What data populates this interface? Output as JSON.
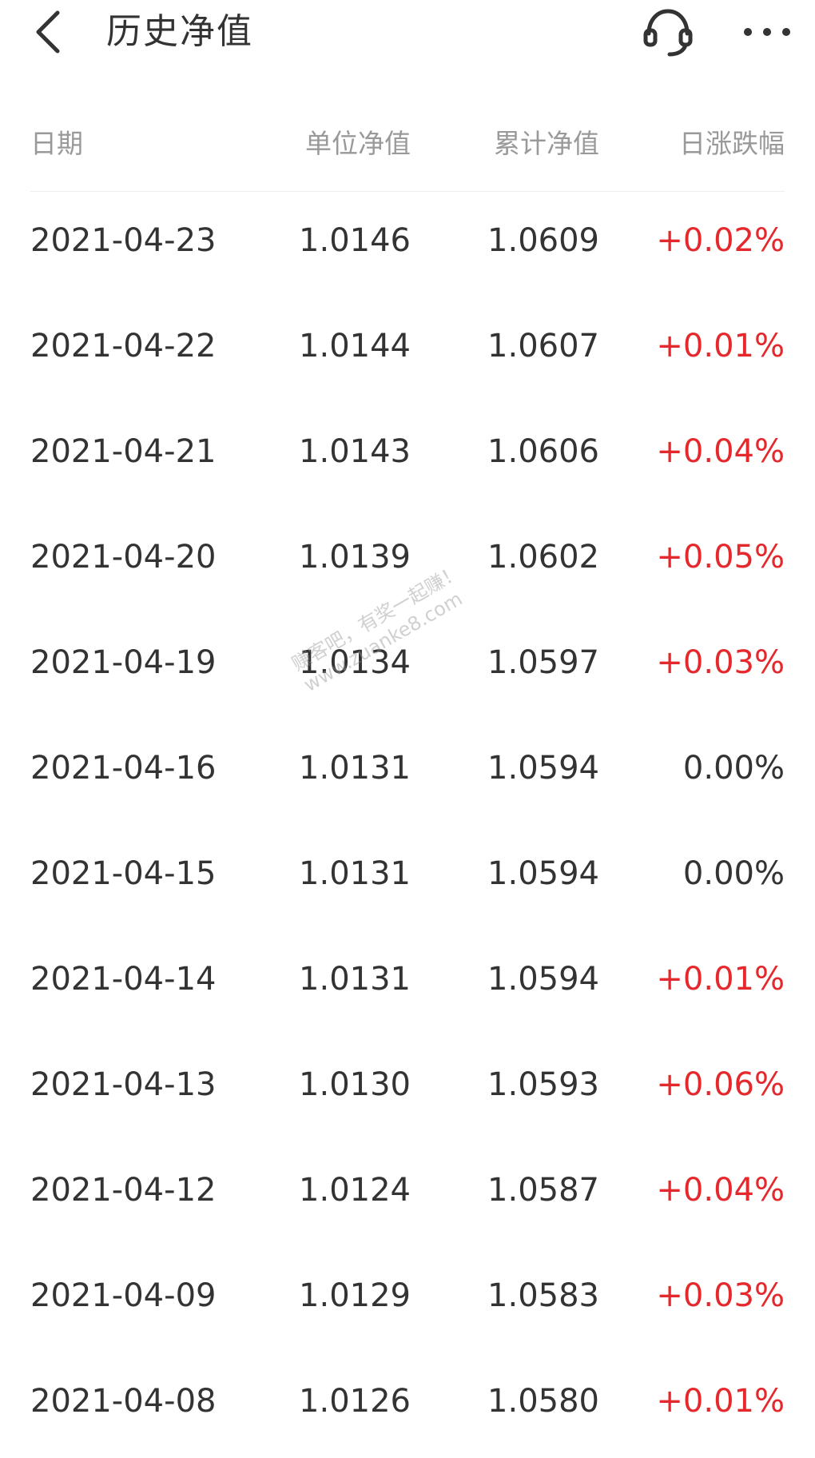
{
  "header": {
    "title": "历史净值",
    "back_icon": "chevron-left-icon",
    "service_icon": "headset-icon",
    "more_icon": "more-horizontal-icon"
  },
  "table": {
    "columns": [
      "日期",
      "单位净值",
      "累计净值",
      "日涨跌幅"
    ],
    "rows": [
      {
        "date": "2021-04-23",
        "unit": "1.0146",
        "acc": "1.0609",
        "change": "+0.02%"
      },
      {
        "date": "2021-04-22",
        "unit": "1.0144",
        "acc": "1.0607",
        "change": "+0.01%"
      },
      {
        "date": "2021-04-21",
        "unit": "1.0143",
        "acc": "1.0606",
        "change": "+0.04%"
      },
      {
        "date": "2021-04-20",
        "unit": "1.0139",
        "acc": "1.0602",
        "change": "+0.05%"
      },
      {
        "date": "2021-04-19",
        "unit": "1.0134",
        "acc": "1.0597",
        "change": "+0.03%"
      },
      {
        "date": "2021-04-16",
        "unit": "1.0131",
        "acc": "1.0594",
        "change": "0.00%"
      },
      {
        "date": "2021-04-15",
        "unit": "1.0131",
        "acc": "1.0594",
        "change": "0.00%"
      },
      {
        "date": "2021-04-14",
        "unit": "1.0131",
        "acc": "1.0594",
        "change": "+0.01%"
      },
      {
        "date": "2021-04-13",
        "unit": "1.0130",
        "acc": "1.0593",
        "change": "+0.06%"
      },
      {
        "date": "2021-04-12",
        "unit": "1.0124",
        "acc": "1.0587",
        "change": "+0.04%"
      },
      {
        "date": "2021-04-09",
        "unit": "1.0129",
        "acc": "1.0583",
        "change": "+0.03%"
      },
      {
        "date": "2021-04-08",
        "unit": "1.0126",
        "acc": "1.0580",
        "change": "+0.01%"
      }
    ]
  },
  "watermark": {
    "line1": "赚客吧，有奖一起赚！",
    "line2": "www.zuanke8.com"
  },
  "colors": {
    "up": "#e5282b",
    "text": "#333333",
    "header_text": "#999999"
  }
}
